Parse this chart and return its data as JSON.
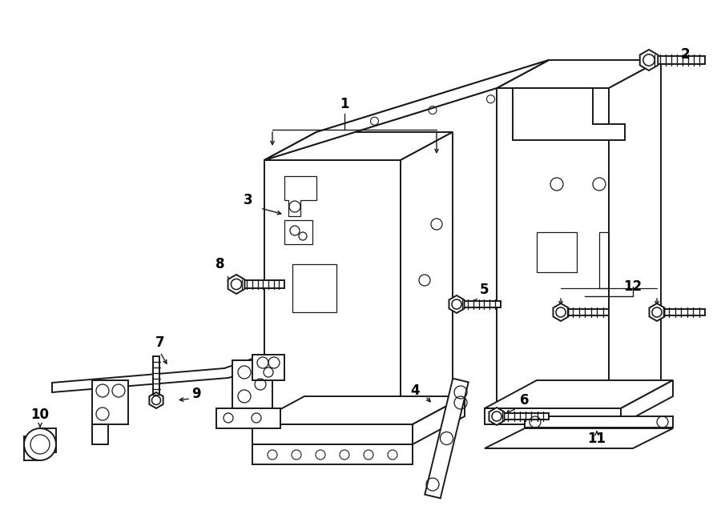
{
  "bg_color": "#ffffff",
  "line_color": "#1a1a1a",
  "label_color": "#000000",
  "label_fontsize": 12,
  "label_fontweight": "bold",
  "figsize": [
    9.0,
    6.62
  ],
  "dpi": 100,
  "lw_main": 1.4,
  "lw_thin": 0.9,
  "lw_thick": 2.0
}
